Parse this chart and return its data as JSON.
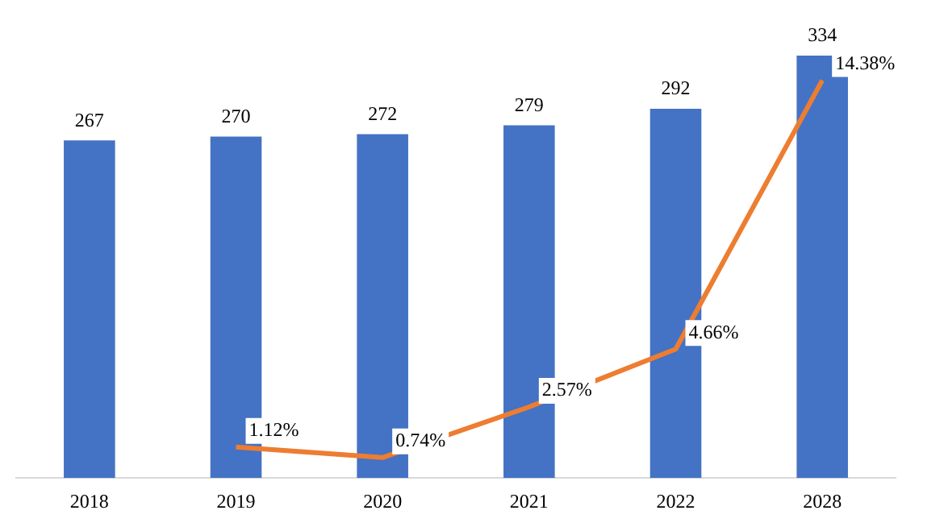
{
  "chart_data": {
    "type": "bar",
    "categories": [
      "2018",
      "2019",
      "2020",
      "2021",
      "2022",
      "2028"
    ],
    "series": [
      {
        "color": "#4472c4",
        "values": [
          267,
          270,
          272,
          279,
          292,
          334
        ],
        "value_labels": [
          "267",
          "270",
          "272",
          "279",
          "292",
          "334"
        ]
      },
      {
        "type": "line",
        "axis": "y2",
        "color": "#ed7d31",
        "values": [
          null,
          1.12,
          0.74,
          2.57,
          4.66,
          14.38
        ],
        "value_labels": [
          null,
          "1.12%",
          "0.74%",
          "2.57%",
          "4.66%",
          "14.38%"
        ]
      }
    ],
    "grid": false,
    "legend": false,
    "marker": "none"
  }
}
